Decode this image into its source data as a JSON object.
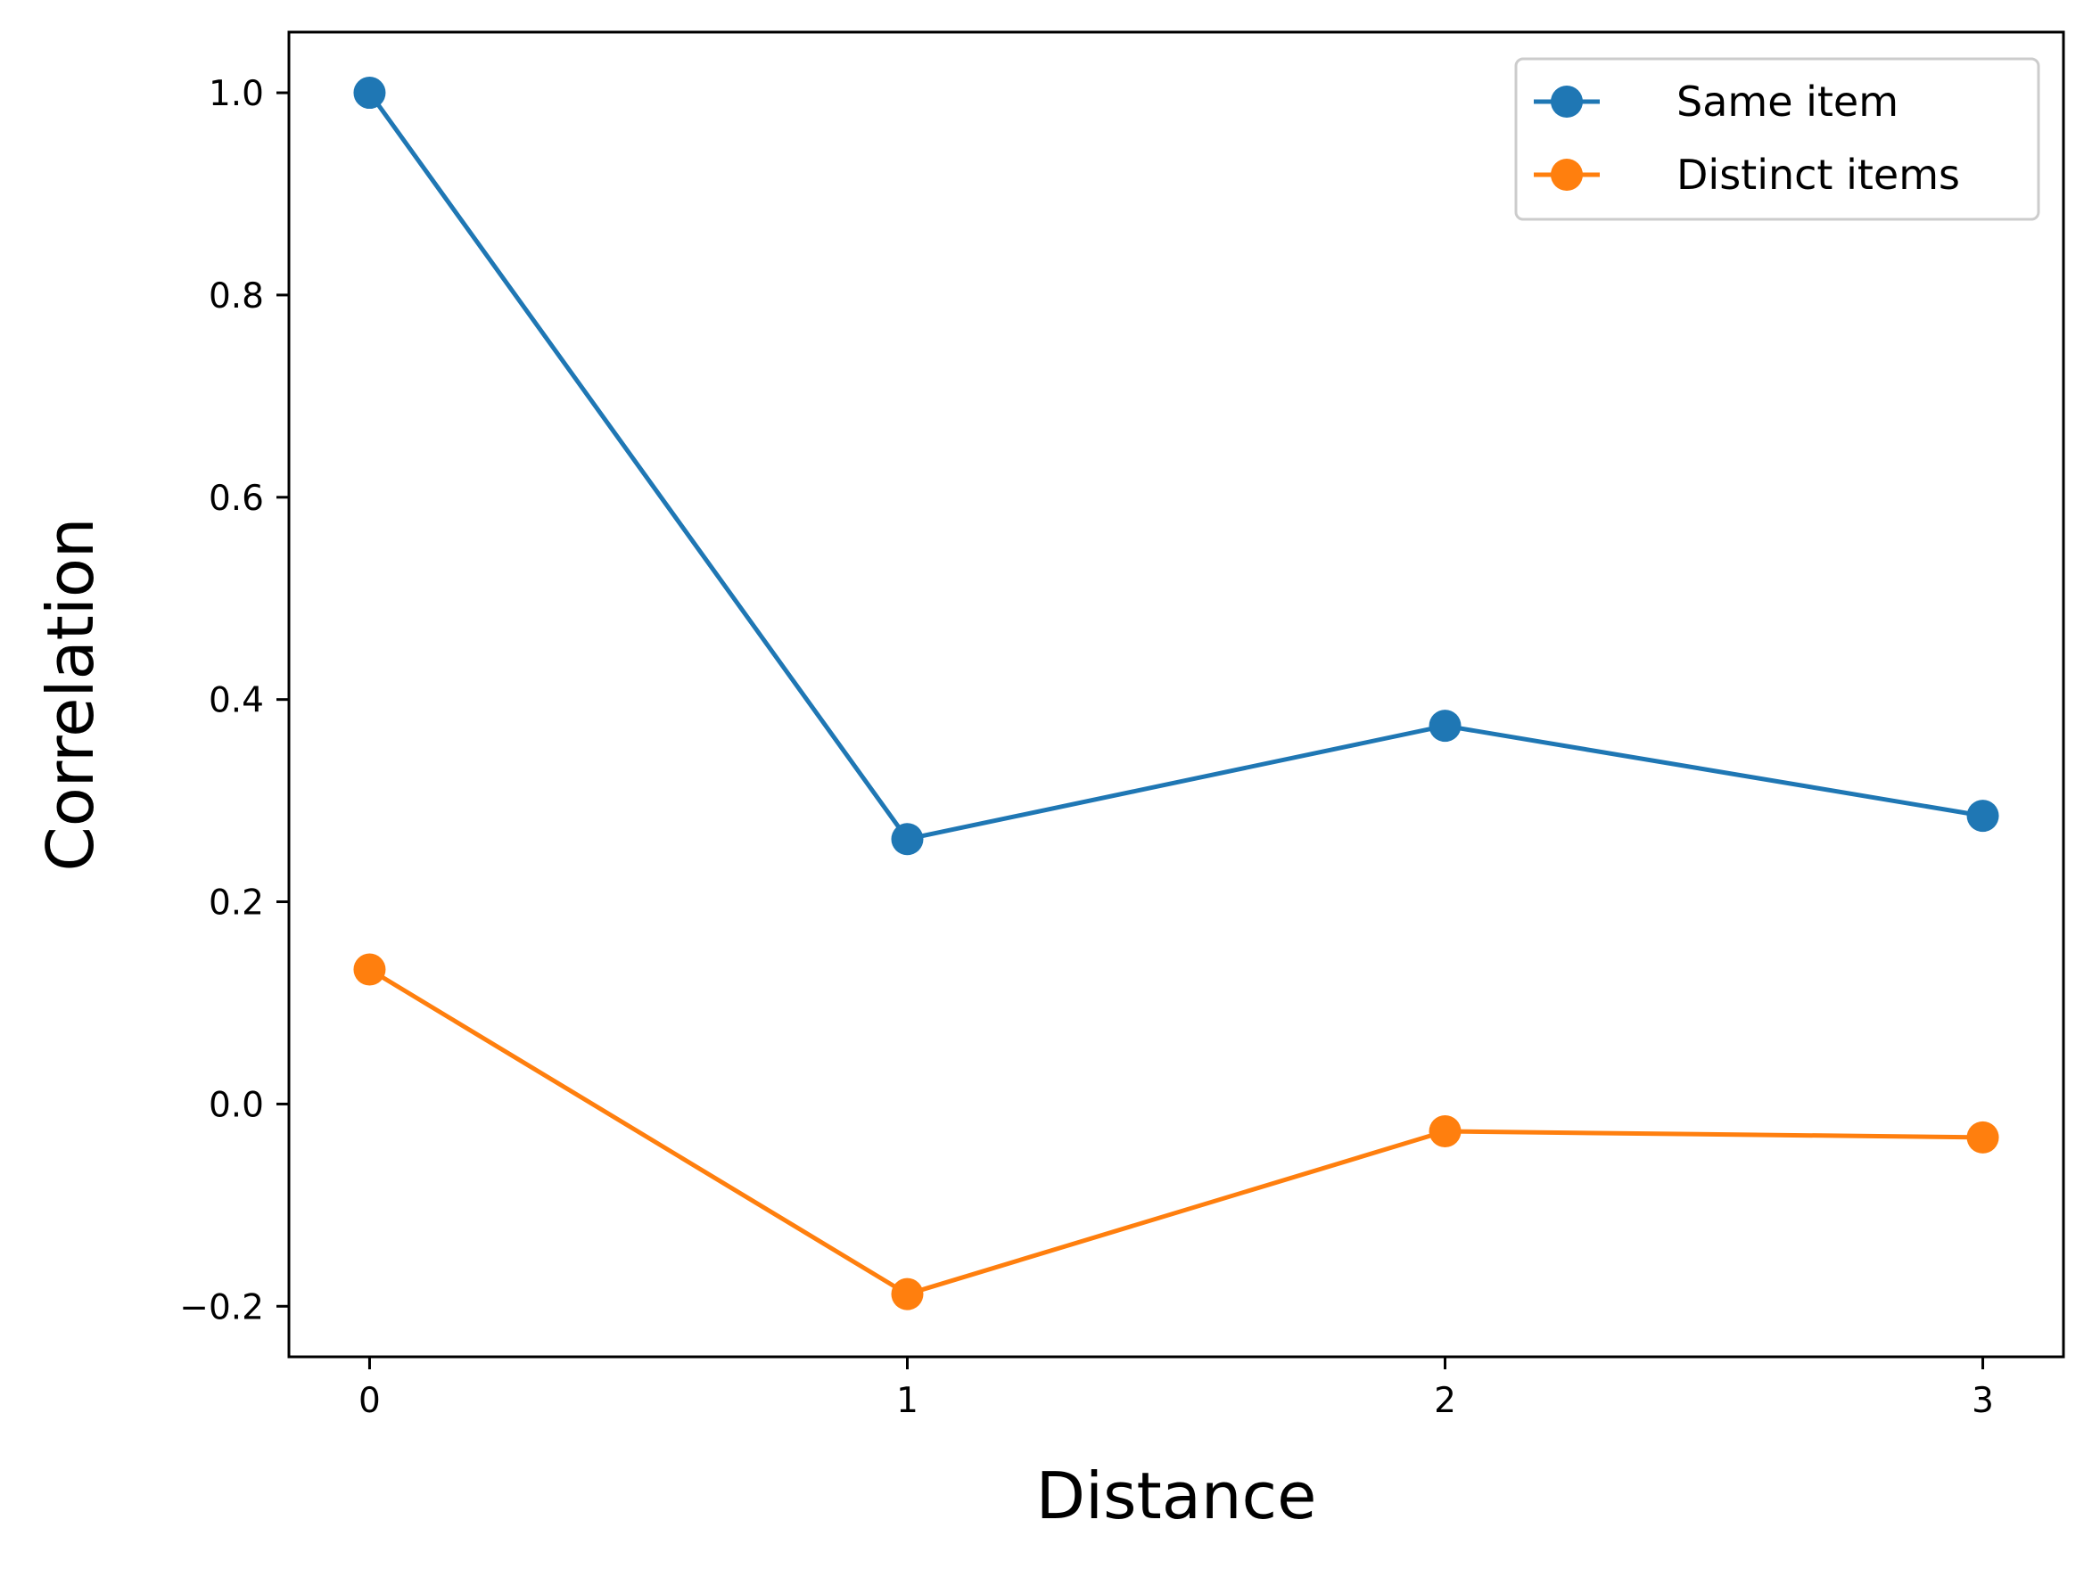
{
  "chart_data": {
    "type": "line",
    "title": "",
    "xlabel": "Distance",
    "ylabel": "Correlation",
    "x": [
      0,
      1,
      2,
      3
    ],
    "xticks": [
      0,
      1,
      2,
      3
    ],
    "xtick_labels": [
      "0",
      "1",
      "2",
      "3"
    ],
    "yticks": [
      -0.2,
      0.0,
      0.2,
      0.4,
      0.6,
      0.8,
      1.0
    ],
    "ytick_labels": [
      "−0.2",
      "0.0",
      "0.2",
      "0.4",
      "0.6",
      "0.8",
      "1.0"
    ],
    "xlim": [
      -0.15,
      3.15
    ],
    "ylim": [
      -0.25,
      1.06
    ],
    "grid": false,
    "legend_position": "top-right",
    "series": [
      {
        "name": "Same item",
        "color": "#1f77b4",
        "marker": "circle",
        "values": [
          1.0,
          0.262,
          0.374,
          0.285
        ]
      },
      {
        "name": "Distinct items",
        "color": "#ff7f0e",
        "marker": "circle",
        "values": [
          0.133,
          -0.188,
          -0.027,
          -0.033
        ]
      }
    ]
  }
}
